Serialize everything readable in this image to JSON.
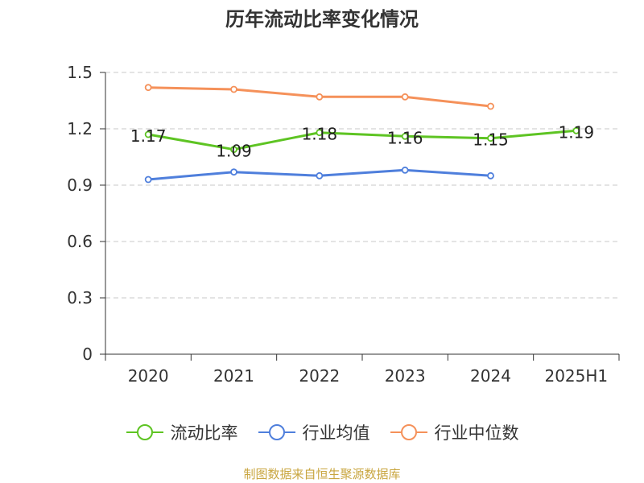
{
  "chart_data": {
    "type": "line",
    "title": "历年流动比率变化情况",
    "categories": [
      "2020",
      "2021",
      "2022",
      "2023",
      "2024",
      "2025H1"
    ],
    "ylim": [
      0,
      1.5
    ],
    "yticks": [
      "0",
      "0.3",
      "0.6",
      "0.9",
      "1.2",
      "1.5"
    ],
    "grid": true,
    "legend_position": "bottom",
    "series": [
      {
        "name": "流动比率",
        "color": "#5ec423",
        "values": [
          1.17,
          1.09,
          1.18,
          1.16,
          1.15,
          1.19
        ],
        "labels": [
          "1.17",
          "1.09",
          "1.18",
          "1.16",
          "1.15",
          "1.19"
        ]
      },
      {
        "name": "行业均值",
        "color": "#4f7fdc",
        "values": [
          0.93,
          0.97,
          0.95,
          0.98,
          0.95,
          null
        ]
      },
      {
        "name": "行业中位数",
        "color": "#f5915a",
        "values": [
          1.42,
          1.41,
          1.37,
          1.37,
          1.32,
          null
        ]
      }
    ],
    "source": "制图数据来自恒生聚源数据库"
  }
}
